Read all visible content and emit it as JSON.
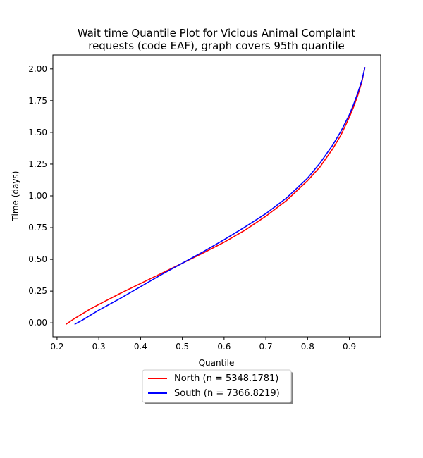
{
  "chart_data": {
    "type": "line",
    "title_line1": "Wait time Quantile Plot for Vicious Animal Complaint",
    "title_line2": "requests (code EAF), graph covers 95th quantile",
    "xlabel": "Quantile",
    "ylabel": "Time (days)",
    "xlim": [
      0.19,
      0.975
    ],
    "ylim": [
      -0.11,
      2.11
    ],
    "x_ticks": [
      0.2,
      0.3,
      0.4,
      0.5,
      0.6,
      0.7,
      0.8,
      0.9
    ],
    "x_tick_labels": [
      "0.2",
      "0.3",
      "0.4",
      "0.5",
      "0.6",
      "0.7",
      "0.8",
      "0.9"
    ],
    "y_ticks": [
      0.0,
      0.25,
      0.5,
      0.75,
      1.0,
      1.25,
      1.5,
      1.75,
      2.0
    ],
    "y_tick_labels": [
      "0.00",
      "0.25",
      "0.50",
      "0.75",
      "1.00",
      "1.25",
      "1.50",
      "1.75",
      "2.00"
    ],
    "grid": false,
    "legend_position": "below-center",
    "series": [
      {
        "name": "North (n = 5348.1781)",
        "color": "#ff0000",
        "points": [
          [
            0.222,
            -0.01
          ],
          [
            0.24,
            0.03
          ],
          [
            0.26,
            0.07
          ],
          [
            0.28,
            0.11
          ],
          [
            0.3,
            0.145
          ],
          [
            0.35,
            0.23
          ],
          [
            0.4,
            0.31
          ],
          [
            0.45,
            0.39
          ],
          [
            0.5,
            0.47
          ],
          [
            0.55,
            0.55
          ],
          [
            0.6,
            0.635
          ],
          [
            0.65,
            0.73
          ],
          [
            0.7,
            0.84
          ],
          [
            0.75,
            0.965
          ],
          [
            0.8,
            1.12
          ],
          [
            0.83,
            1.23
          ],
          [
            0.86,
            1.37
          ],
          [
            0.88,
            1.48
          ],
          [
            0.9,
            1.62
          ],
          [
            0.91,
            1.7
          ],
          [
            0.92,
            1.79
          ],
          [
            0.93,
            1.9
          ],
          [
            0.937,
            2.01
          ]
        ]
      },
      {
        "name": "South (n = 7366.8219)",
        "color": "#0000ff",
        "points": [
          [
            0.243,
            -0.01
          ],
          [
            0.26,
            0.02
          ],
          [
            0.28,
            0.06
          ],
          [
            0.3,
            0.1
          ],
          [
            0.35,
            0.19
          ],
          [
            0.4,
            0.285
          ],
          [
            0.45,
            0.38
          ],
          [
            0.5,
            0.47
          ],
          [
            0.55,
            0.56
          ],
          [
            0.6,
            0.655
          ],
          [
            0.65,
            0.755
          ],
          [
            0.7,
            0.86
          ],
          [
            0.75,
            0.985
          ],
          [
            0.8,
            1.14
          ],
          [
            0.83,
            1.26
          ],
          [
            0.86,
            1.4
          ],
          [
            0.88,
            1.51
          ],
          [
            0.9,
            1.64
          ],
          [
            0.91,
            1.72
          ],
          [
            0.92,
            1.81
          ],
          [
            0.93,
            1.91
          ],
          [
            0.937,
            2.01
          ]
        ]
      }
    ]
  }
}
